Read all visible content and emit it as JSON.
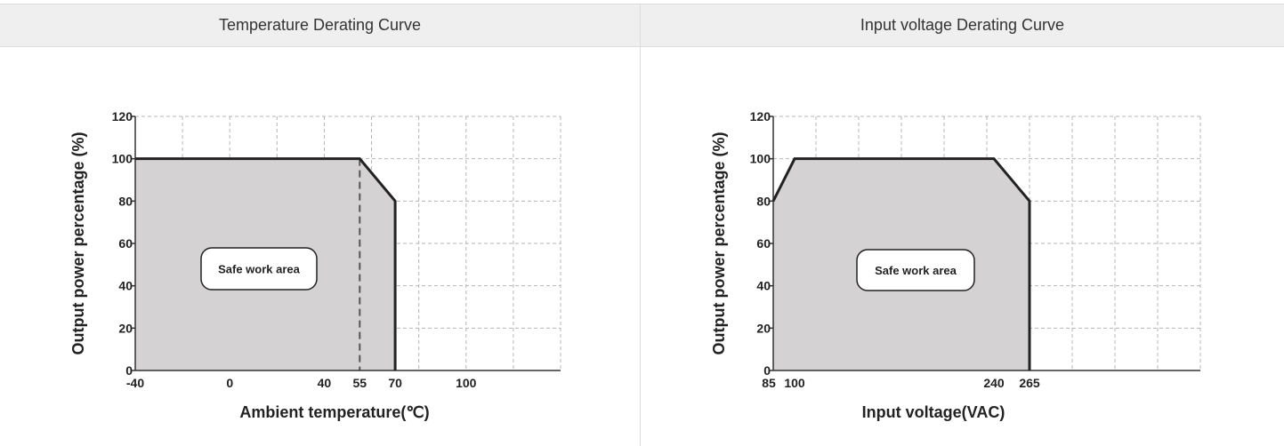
{
  "columns": {
    "left_title": "Temperature Derating Curve",
    "right_title": "Input voltage Derating Curve"
  },
  "chart_data": [
    {
      "type": "area",
      "title": "",
      "xlabel": "Ambient temperature(℃)",
      "ylabel": "Output power percentage (%)",
      "x_tick_labels": [
        "-40",
        "0",
        "40",
        "55",
        "70",
        "100"
      ],
      "y_tick_labels": [
        "0",
        "20",
        "40",
        "60",
        "80",
        "100",
        "120"
      ],
      "xlim": [
        -40,
        140
      ],
      "ylim": [
        0,
        120
      ],
      "grid": true,
      "series": [
        {
          "x": [
            -40,
            55,
            70,
            70
          ],
          "y": [
            100,
            100,
            80,
            0
          ]
        }
      ],
      "reference_line_x": 55,
      "annotation": "Safe work area",
      "colors": {
        "fill": "#d4d2d3",
        "line": "#222222",
        "grid": "#b5b5b5"
      }
    },
    {
      "type": "area",
      "title": "",
      "xlabel": "Input voltage(VAC)",
      "ylabel": "Output power percentage (%)",
      "x_tick_labels": [
        "85",
        "100",
        "240",
        "265"
      ],
      "y_tick_labels": [
        "0",
        "20",
        "40",
        "60",
        "80",
        "100",
        "120"
      ],
      "xlim": [
        85,
        385
      ],
      "ylim": [
        0,
        120
      ],
      "grid": true,
      "series": [
        {
          "x": [
            85,
            100,
            240,
            265,
            265
          ],
          "y": [
            80,
            100,
            100,
            80,
            0
          ]
        }
      ],
      "annotation": "Safe work area",
      "colors": {
        "fill": "#d4d2d3",
        "line": "#222222",
        "grid": "#b5b5b5"
      }
    }
  ]
}
